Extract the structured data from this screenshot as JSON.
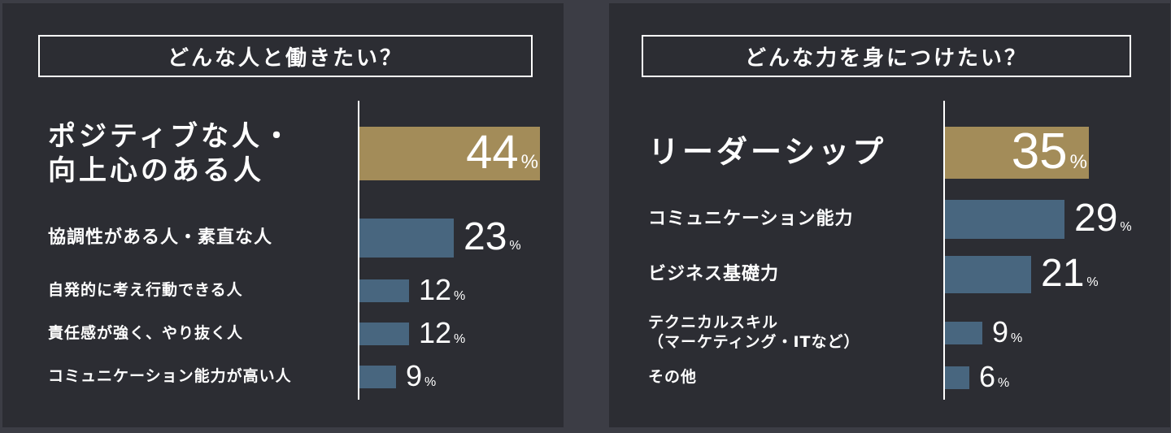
{
  "chart_data": [
    {
      "type": "bar",
      "orientation": "horizontal",
      "title": "どんな人と働きたい？",
      "categories": [
        "ポジティブな人・\n向上心のある人",
        "協調性がある人・素直な人",
        "自発的に考え行動できる人",
        "責任感が強く、やり抜く人",
        "コミュニケーション能力が高い人"
      ],
      "values": [
        44,
        23,
        12,
        12,
        9
      ],
      "unit": "%",
      "highlight_color": "#a38c59",
      "bar_color": "#48667f",
      "xlim": [
        0,
        44
      ]
    },
    {
      "type": "bar",
      "orientation": "horizontal",
      "title": "どんな力を身につけたい？",
      "categories": [
        "リーダーシップ",
        "コミュニケーション能力",
        "ビジネス基礎力",
        "テクニカルスキル\n（マーケティング・ITなど）",
        "その他"
      ],
      "values": [
        35,
        29,
        21,
        9,
        6
      ],
      "unit": "%",
      "highlight_color": "#a38c59",
      "bar_color": "#48667f",
      "xlim": [
        0,
        35
      ]
    }
  ]
}
